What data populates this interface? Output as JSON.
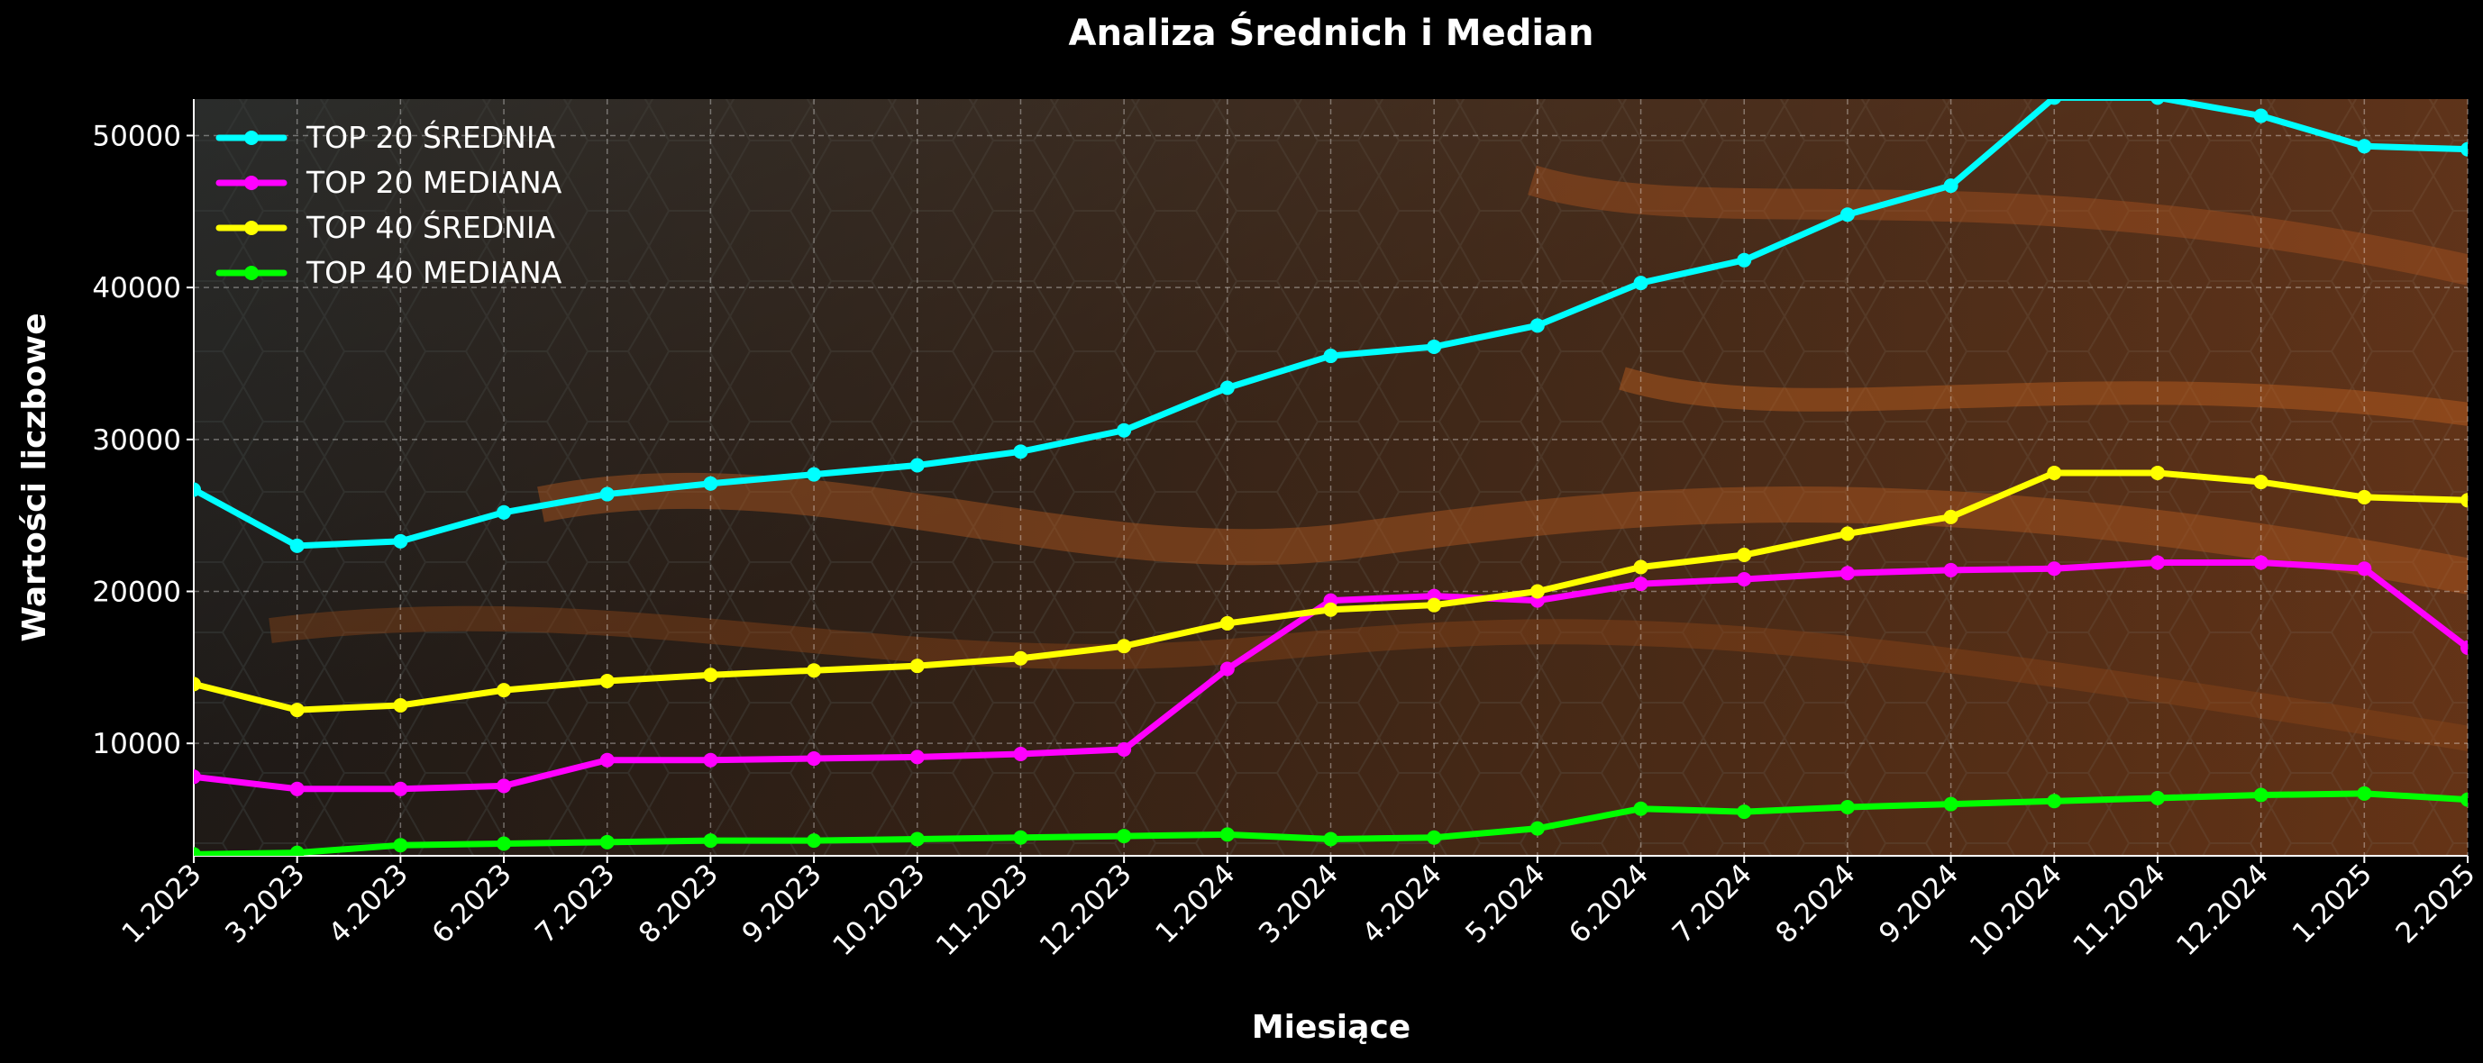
{
  "chart_data": {
    "type": "line",
    "title": "Analiza Średnich i Median",
    "xlabel": "Miesiące",
    "ylabel": "Wartości liczbowe",
    "categories": [
      "1.2023",
      "3.2023",
      "4.2023",
      "6.2023",
      "7.2023",
      "8.2023",
      "9.2023",
      "10.2023",
      "11.2023",
      "12.2023",
      "1.2024",
      "3.2024",
      "4.2024",
      "5.2024",
      "6.2024",
      "7.2024",
      "8.2024",
      "9.2024",
      "10.2024",
      "11.2024",
      "12.2024",
      "1.2025",
      "2.2025"
    ],
    "yticks": [
      10000,
      20000,
      30000,
      40000,
      50000
    ],
    "ylim": [
      2600,
      52400
    ],
    "grid": true,
    "legend_position": "top-left",
    "series": [
      {
        "name": "TOP 20 ŚREDNIA",
        "color": "#00ffff",
        "values": [
          26700,
          23000,
          23300,
          25200,
          26400,
          27100,
          27700,
          28300,
          29200,
          30600,
          33400,
          35500,
          36100,
          37500,
          40300,
          41800,
          44800,
          46700,
          52500,
          52500,
          51300,
          49300,
          49100
        ]
      },
      {
        "name": "TOP 20 MEDIANA",
        "color": "#ff00ff",
        "values": [
          7800,
          7000,
          7000,
          7200,
          8900,
          8900,
          9000,
          9100,
          9300,
          9600,
          14900,
          19400,
          19700,
          19400,
          20500,
          20800,
          21200,
          21400,
          21500,
          21900,
          21900,
          21500,
          16300
        ]
      },
      {
        "name": "TOP 40 ŚREDNIA",
        "color": "#ffff00",
        "values": [
          13900,
          12200,
          12500,
          13500,
          14100,
          14500,
          14800,
          15100,
          15600,
          16400,
          17900,
          18800,
          19100,
          20000,
          21600,
          22400,
          23800,
          24900,
          27800,
          27800,
          27200,
          26200,
          26000
        ]
      },
      {
        "name": "TOP 40 MEDIANA",
        "color": "#00ff00",
        "values": [
          2700,
          2800,
          3300,
          3400,
          3500,
          3600,
          3600,
          3700,
          3800,
          3900,
          4000,
          3700,
          3800,
          4400,
          5700,
          5500,
          5800,
          6000,
          6200,
          6400,
          6600,
          6700,
          6300
        ]
      }
    ]
  }
}
